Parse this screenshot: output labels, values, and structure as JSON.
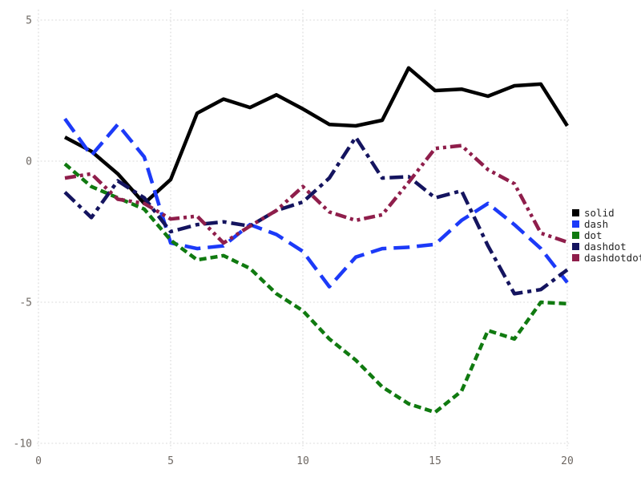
{
  "chart": {
    "background": "#ffffff",
    "grid_color": "#d9d9d9",
    "tick_color": "#6e6863",
    "legend_text_color": "#262626"
  },
  "chart_data": {
    "type": "line",
    "title": "",
    "xlabel": "",
    "ylabel": "",
    "xlim": [
      0,
      20
    ],
    "ylim": [
      -10,
      5
    ],
    "grid": true,
    "legend_position": "right",
    "xticks": [
      "0",
      "5",
      "10",
      "15",
      "20"
    ],
    "yticks": [
      "5",
      "0",
      "-5",
      "-10"
    ],
    "x": [
      1,
      2,
      3,
      4,
      5,
      6,
      7,
      8,
      9,
      10,
      11,
      12,
      13,
      14,
      15,
      16,
      17,
      18,
      19,
      20
    ],
    "series": [
      {
        "name": "solid",
        "color": "#000000",
        "dash": [],
        "values": [
          0.85,
          0.35,
          -0.45,
          -1.5,
          -0.65,
          1.7,
          2.2,
          1.9,
          2.35,
          1.85,
          1.3,
          1.25,
          1.45,
          3.3,
          2.5,
          2.55,
          2.3,
          2.67,
          2.73,
          1.25
        ]
      },
      {
        "name": "dash",
        "color": "#1c3af8",
        "dash": [
          20,
          9
        ],
        "values": [
          1.5,
          0.2,
          1.3,
          0.15,
          -2.9,
          -3.1,
          -3.0,
          -2.25,
          -2.6,
          -3.2,
          -4.45,
          -3.4,
          -3.1,
          -3.05,
          -2.95,
          -2.1,
          -1.5,
          -2.25,
          -3.1,
          -4.3
        ]
      },
      {
        "name": "dot",
        "color": "#107a10",
        "dash": [
          9,
          5
        ],
        "values": [
          -0.1,
          -0.9,
          -1.3,
          -1.7,
          -2.8,
          -3.5,
          -3.35,
          -3.8,
          -4.7,
          -5.3,
          -6.3,
          -7.05,
          -8.0,
          -8.6,
          -8.9,
          -8.15,
          -6.0,
          -6.3,
          -5.0,
          -5.05
        ]
      },
      {
        "name": "dashdot",
        "color": "#14145f",
        "dash": [
          17,
          6,
          5,
          6
        ],
        "values": [
          -1.1,
          -2.0,
          -0.7,
          -1.3,
          -2.5,
          -2.25,
          -2.15,
          -2.3,
          -1.75,
          -1.45,
          -0.6,
          0.85,
          -0.6,
          -0.55,
          -1.3,
          -1.05,
          -3.0,
          -4.7,
          -4.55,
          -3.85
        ]
      },
      {
        "name": "dashdotdot",
        "color": "#8f1e4b",
        "dash": [
          14,
          5,
          4,
          5,
          4,
          5
        ],
        "values": [
          -0.6,
          -0.45,
          -1.35,
          -1.5,
          -2.05,
          -1.95,
          -2.9,
          -2.3,
          -1.75,
          -0.9,
          -1.8,
          -2.1,
          -1.9,
          -0.75,
          0.45,
          0.55,
          -0.3,
          -0.8,
          -2.55,
          -2.87
        ]
      }
    ]
  }
}
